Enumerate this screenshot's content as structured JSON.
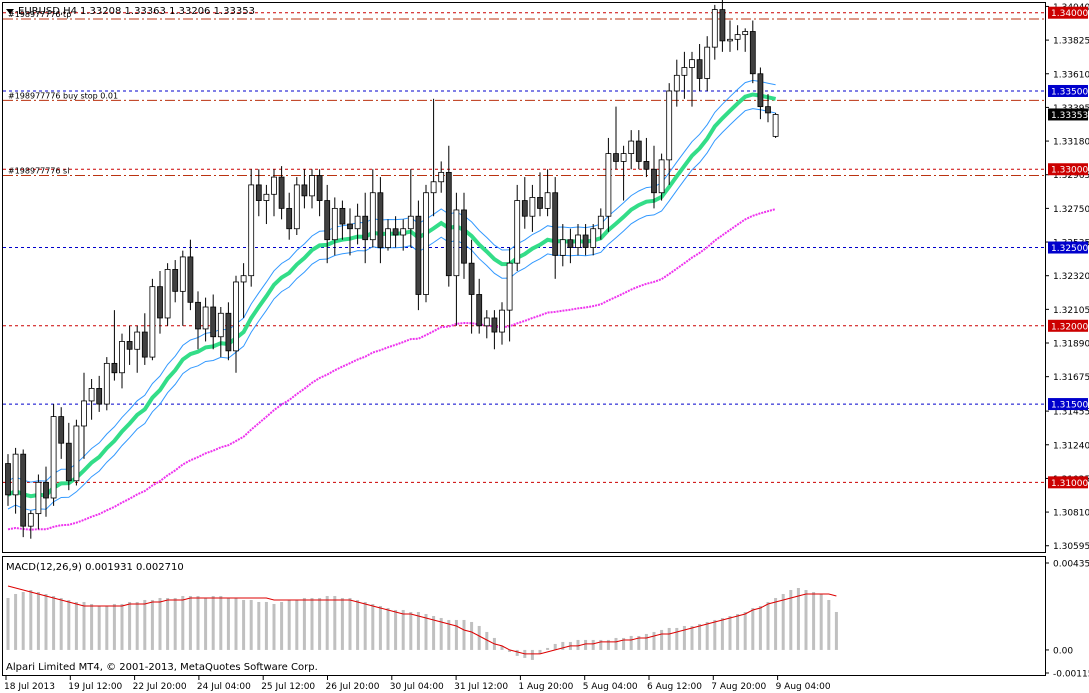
{
  "header": {
    "symbol_tf": "EURUSD,H4",
    "ohlc": "1.33208 1.33363 1.33206 1.33353"
  },
  "colors": {
    "background": "#ffffff",
    "axis": "#000000",
    "bull_candle": "#ffffff",
    "bear_candle": "#404040",
    "ma_fast": "#33dd88",
    "band": "#3399ff",
    "ma_slow": "#ee33ee",
    "level_red": "#cc0000",
    "level_blue": "#0000cc",
    "macd_hist": "#c0c0c0",
    "macd_signal": "#dd0000",
    "order_line": "#bb3311"
  },
  "chart_data": [
    {
      "type": "candlestick",
      "title": "EURUSD,H4",
      "ylim": [
        1.30555,
        1.34062
      ],
      "y_ticks": [
        "1.34040",
        "1.33825",
        "1.33610",
        "1.33395",
        "1.33180",
        "1.32965",
        "1.32750",
        "1.32535",
        "1.32320",
        "1.32105",
        "1.31890",
        "1.31675",
        "1.31455",
        "1.31240",
        "1.31025",
        "1.30810",
        "1.30595"
      ],
      "x_ticks": [
        "18 Jul 2013",
        "19 Jul 12:00",
        "22 Jul 20:00",
        "24 Jul 04:00",
        "25 Jul 12:00",
        "26 Jul 20:00",
        "30 Jul 04:00",
        "31 Jul 12:00",
        "1 Aug 20:00",
        "5 Aug 04:00",
        "6 Aug 12:00",
        "7 Aug 20:00",
        "9 Aug 04:00"
      ],
      "levels": [
        {
          "value": 1.34,
          "label": "1.34000",
          "color": "red"
        },
        {
          "value": 1.335,
          "label": "1.33500",
          "color": "blue"
        },
        {
          "value": 1.33,
          "label": "1.33000",
          "color": "red"
        },
        {
          "value": 1.325,
          "label": "1.32500",
          "color": "blue"
        },
        {
          "value": 1.32,
          "label": "1.32000",
          "color": "red"
        },
        {
          "value": 1.315,
          "label": "1.31500",
          "color": "blue"
        },
        {
          "value": 1.31,
          "label": "1.31000",
          "color": "red"
        }
      ],
      "orders": [
        {
          "label": "#198977776 tp",
          "value": 1.3396
        },
        {
          "label": "#198977776 buy stop 0.01",
          "value": 1.3344
        },
        {
          "label": "#198977776 sl",
          "value": 1.3296
        }
      ],
      "current_price": "1.33353",
      "candles": [
        [
          1.3112,
          1.3118,
          1.3085,
          1.3092
        ],
        [
          1.3092,
          1.3122,
          1.308,
          1.3118
        ],
        [
          1.3118,
          1.3121,
          1.3065,
          1.3072
        ],
        [
          1.3072,
          1.3082,
          1.3064,
          1.308
        ],
        [
          1.308,
          1.3105,
          1.307,
          1.31
        ],
        [
          1.31,
          1.311,
          1.3078,
          1.309
        ],
        [
          1.309,
          1.315,
          1.3085,
          1.3142
        ],
        [
          1.3142,
          1.3148,
          1.3115,
          1.3125
        ],
        [
          1.3125,
          1.3138,
          1.3095,
          1.3101
        ],
        [
          1.3101,
          1.314,
          1.3098,
          1.3136
        ],
        [
          1.3136,
          1.317,
          1.3115,
          1.3152
        ],
        [
          1.3152,
          1.3166,
          1.314,
          1.316
        ],
        [
          1.316,
          1.3168,
          1.3145,
          1.315
        ],
        [
          1.315,
          1.318,
          1.3146,
          1.3176
        ],
        [
          1.3176,
          1.321,
          1.3165,
          1.317
        ],
        [
          1.317,
          1.3195,
          1.316,
          1.319
        ],
        [
          1.319,
          1.32,
          1.3175,
          1.3185
        ],
        [
          1.3185,
          1.32,
          1.317,
          1.3196
        ],
        [
          1.3196,
          1.3208,
          1.3175,
          1.318
        ],
        [
          1.318,
          1.323,
          1.3178,
          1.3225
        ],
        [
          1.3225,
          1.3235,
          1.3195,
          1.3205
        ],
        [
          1.3205,
          1.324,
          1.32,
          1.3236
        ],
        [
          1.3236,
          1.3242,
          1.3215,
          1.3222
        ],
        [
          1.3222,
          1.3248,
          1.32,
          1.3244
        ],
        [
          1.3244,
          1.3255,
          1.321,
          1.3215
        ],
        [
          1.3215,
          1.3222,
          1.3185,
          1.3198
        ],
        [
          1.3198,
          1.3218,
          1.319,
          1.3212
        ],
        [
          1.3212,
          1.322,
          1.3185,
          1.3193
        ],
        [
          1.3193,
          1.3212,
          1.318,
          1.3208
        ],
        [
          1.3208,
          1.3215,
          1.3178,
          1.3184
        ],
        [
          1.3184,
          1.3232,
          1.317,
          1.3228
        ],
        [
          1.3228,
          1.324,
          1.3205,
          1.3232
        ],
        [
          1.3232,
          1.33,
          1.3225,
          1.329
        ],
        [
          1.329,
          1.33,
          1.327,
          1.328
        ],
        [
          1.328,
          1.329,
          1.3265,
          1.3284
        ],
        [
          1.3284,
          1.33,
          1.327,
          1.3295
        ],
        [
          1.3295,
          1.3302,
          1.3268,
          1.3275
        ],
        [
          1.3275,
          1.3285,
          1.3255,
          1.3262
        ],
        [
          1.3262,
          1.3295,
          1.3258,
          1.329
        ],
        [
          1.329,
          1.33,
          1.3275,
          1.3283
        ],
        [
          1.3283,
          1.33,
          1.3275,
          1.3296
        ],
        [
          1.3296,
          1.33,
          1.327,
          1.328
        ],
        [
          1.328,
          1.329,
          1.324,
          1.3255
        ],
        [
          1.3255,
          1.3282,
          1.3245,
          1.3275
        ],
        [
          1.3275,
          1.328,
          1.3255,
          1.3265
        ],
        [
          1.3265,
          1.3275,
          1.3245,
          1.3262
        ],
        [
          1.3262,
          1.3278,
          1.3252,
          1.327
        ],
        [
          1.327,
          1.3285,
          1.324,
          1.3255
        ],
        [
          1.3255,
          1.33,
          1.325,
          1.3285
        ],
        [
          1.3285,
          1.3295,
          1.324,
          1.325
        ],
        [
          1.325,
          1.3268,
          1.3248,
          1.3262
        ],
        [
          1.3262,
          1.327,
          1.325,
          1.3258
        ],
        [
          1.3258,
          1.3268,
          1.3248,
          1.3262
        ],
        [
          1.3262,
          1.33,
          1.325,
          1.327
        ],
        [
          1.327,
          1.328,
          1.321,
          1.322
        ],
        [
          1.322,
          1.329,
          1.3215,
          1.3285
        ],
        [
          1.3285,
          1.3345,
          1.327,
          1.3292
        ],
        [
          1.3292,
          1.3305,
          1.3285,
          1.3298
        ],
        [
          1.3298,
          1.3315,
          1.3225,
          1.3232
        ],
        [
          1.3232,
          1.3285,
          1.32,
          1.3274
        ],
        [
          1.3274,
          1.3285,
          1.323,
          1.324
        ],
        [
          1.324,
          1.3255,
          1.3195,
          1.322
        ],
        [
          1.322,
          1.323,
          1.3195,
          1.32
        ],
        [
          1.32,
          1.321,
          1.3192,
          1.3205
        ],
        [
          1.3205,
          1.321,
          1.3185,
          1.3196
        ],
        [
          1.3196,
          1.3215,
          1.3188,
          1.321
        ],
        [
          1.321,
          1.325,
          1.319,
          1.324
        ],
        [
          1.324,
          1.329,
          1.3235,
          1.328
        ],
        [
          1.328,
          1.3295,
          1.3262,
          1.327
        ],
        [
          1.327,
          1.329,
          1.326,
          1.3282
        ],
        [
          1.3282,
          1.3298,
          1.327,
          1.3275
        ],
        [
          1.3275,
          1.33,
          1.327,
          1.3285
        ],
        [
          1.3285,
          1.3295,
          1.323,
          1.3245
        ],
        [
          1.3245,
          1.3265,
          1.3238,
          1.3255
        ],
        [
          1.3255,
          1.3262,
          1.324,
          1.325
        ],
        [
          1.325,
          1.3265,
          1.3245,
          1.3258
        ],
        [
          1.3258,
          1.3265,
          1.3245,
          1.325
        ],
        [
          1.325,
          1.3265,
          1.3245,
          1.3262
        ],
        [
          1.3262,
          1.3275,
          1.3255,
          1.327
        ],
        [
          1.327,
          1.332,
          1.326,
          1.331
        ],
        [
          1.331,
          1.334,
          1.33,
          1.3305
        ],
        [
          1.3305,
          1.3315,
          1.328,
          1.331
        ],
        [
          1.331,
          1.3325,
          1.33,
          1.3318
        ],
        [
          1.3318,
          1.3325,
          1.33,
          1.3305
        ],
        [
          1.3305,
          1.332,
          1.3295,
          1.33
        ],
        [
          1.33,
          1.3315,
          1.3275,
          1.3285
        ],
        [
          1.3285,
          1.331,
          1.328,
          1.3306
        ],
        [
          1.3306,
          1.3355,
          1.329,
          1.335
        ],
        [
          1.335,
          1.337,
          1.334,
          1.336
        ],
        [
          1.336,
          1.3375,
          1.3345,
          1.3365
        ],
        [
          1.3365,
          1.3375,
          1.334,
          1.337
        ],
        [
          1.337,
          1.338,
          1.335,
          1.3358
        ],
        [
          1.3358,
          1.3385,
          1.335,
          1.3378
        ],
        [
          1.3378,
          1.3405,
          1.337,
          1.3402
        ],
        [
          1.3402,
          1.341,
          1.3375,
          1.3382
        ],
        [
          1.3382,
          1.3395,
          1.3375,
          1.3383
        ],
        [
          1.3383,
          1.3392,
          1.3376,
          1.3386
        ],
        [
          1.3386,
          1.339,
          1.3375,
          1.3388
        ],
        [
          1.3388,
          1.3395,
          1.3355,
          1.3361
        ],
        [
          1.3361,
          1.3365,
          1.3332,
          1.334
        ],
        [
          1.334,
          1.3348,
          1.333,
          1.3336
        ],
        [
          1.3321,
          1.3336,
          1.332,
          1.3335
        ]
      ]
    },
    {
      "type": "bar",
      "title": "MACD(12,26,9) 0.001931 0.002710",
      "ylim": [
        -0.001154,
        0.004351
      ],
      "y_ticks": [
        "0.004351",
        "0.00",
        "-0.001154"
      ],
      "main_values": [
        0.0026,
        0.0028,
        0.0029,
        0.003,
        0.0029,
        0.0028,
        0.0027,
        0.0026,
        0.0025,
        0.0024,
        0.0024,
        0.0023,
        0.0022,
        0.0022,
        0.0023,
        0.0023,
        0.0024,
        0.0024,
        0.0025,
        0.0025,
        0.0026,
        0.0026,
        0.0026,
        0.0027,
        0.0027,
        0.0027,
        0.0026,
        0.0027,
        0.0027,
        0.0026,
        0.0026,
        0.0025,
        0.0025,
        0.0024,
        0.0024,
        0.0023,
        0.0024,
        0.0025,
        0.0025,
        0.0026,
        0.0026,
        0.0026,
        0.0027,
        0.0027,
        0.0026,
        0.0026,
        0.0025,
        0.0024,
        0.0023,
        0.0022,
        0.0021,
        0.002,
        0.002,
        0.0019,
        0.0019,
        0.0018,
        0.0017,
        0.0016,
        0.0015,
        0.0015,
        0.0015,
        0.0014,
        0.0012,
        0.0009,
        0.0006,
        0.0002,
        -0.0001,
        -0.0003,
        -0.0004,
        -0.0005,
        -0.0002,
        0.0001,
        0.0003,
        0.0004,
        0.0004,
        0.0005,
        0.0005,
        0.0005,
        0.0005,
        0.0005,
        0.0006,
        0.0006,
        0.0007,
        0.0007,
        0.0008,
        0.0009,
        0.001,
        0.0011,
        0.0011,
        0.0012,
        0.0012,
        0.0013,
        0.0014,
        0.0015,
        0.0016,
        0.0017,
        0.0018,
        0.0019,
        0.0021,
        0.0022,
        0.0024,
        0.0026,
        0.0028,
        0.003,
        0.0031,
        0.003,
        0.0029,
        0.0028,
        0.0025,
        0.0019
      ],
      "signal_values": [
        0.0032,
        0.0031,
        0.003,
        0.0029,
        0.0028,
        0.0027,
        0.0026,
        0.0025,
        0.0024,
        0.0023,
        0.0022,
        0.0022,
        0.0022,
        0.0022,
        0.0022,
        0.0022,
        0.0023,
        0.0023,
        0.0023,
        0.0024,
        0.0024,
        0.0025,
        0.0025,
        0.0025,
        0.0026,
        0.0026,
        0.0026,
        0.0026,
        0.0026,
        0.0026,
        0.0026,
        0.0026,
        0.0026,
        0.0026,
        0.0026,
        0.0025,
        0.0025,
        0.0025,
        0.0025,
        0.0025,
        0.0025,
        0.0025,
        0.0025,
        0.0025,
        0.0025,
        0.0025,
        0.0024,
        0.0023,
        0.0022,
        0.0021,
        0.002,
        0.0019,
        0.0018,
        0.0018,
        0.0017,
        0.0016,
        0.0015,
        0.0014,
        0.0013,
        0.0012,
        0.001,
        0.0009,
        0.0007,
        0.0005,
        0.0003,
        0.0002,
        0.0,
        -0.0001,
        -0.0002,
        -0.0002,
        -0.0002,
        -0.0001,
        0.0,
        0.0001,
        0.0002,
        0.0002,
        0.0003,
        0.0003,
        0.0004,
        0.0004,
        0.0004,
        0.0005,
        0.0005,
        0.0006,
        0.0006,
        0.0007,
        0.0008,
        0.0008,
        0.0009,
        0.001,
        0.0011,
        0.0012,
        0.0013,
        0.0014,
        0.0015,
        0.0016,
        0.0017,
        0.0018,
        0.002,
        0.0021,
        0.0023,
        0.0024,
        0.0025,
        0.0026,
        0.0027,
        0.0028,
        0.0028,
        0.0028,
        0.0028,
        0.0027
      ]
    }
  ],
  "footer": {
    "broker": "Alpari Limited MT4, © 2001-2013, MetaQuotes Software Corp."
  }
}
